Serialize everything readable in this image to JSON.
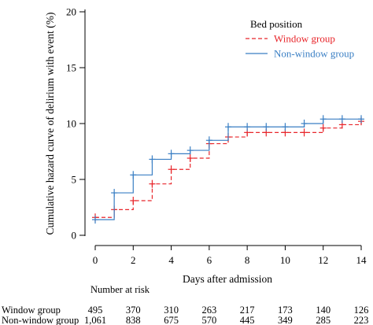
{
  "chart_data": {
    "type": "line",
    "step": true,
    "ylabel": "Cumulative hazard curve of delirium with event (%)",
    "xlabel": "Days after admission",
    "xlim": [
      0,
      14
    ],
    "ylim": [
      0,
      20
    ],
    "x_ticks": [
      "0",
      "2",
      "4",
      "6",
      "8",
      "10",
      "12",
      "14"
    ],
    "y_ticks": [
      "0",
      "5",
      "10",
      "15",
      "20"
    ],
    "grid": false,
    "legend": {
      "title": "Bed position",
      "placement": "top-right"
    },
    "series": [
      {
        "name": "Window group",
        "color": "#e8262b",
        "dash": "dashed",
        "points": [
          [
            0,
            1.6
          ],
          [
            1,
            2.3
          ],
          [
            2,
            3.1
          ],
          [
            3,
            4.6
          ],
          [
            4,
            5.9
          ],
          [
            5,
            6.9
          ],
          [
            6,
            8.2
          ],
          [
            7,
            8.8
          ],
          [
            8,
            9.2
          ],
          [
            12,
            9.6
          ],
          [
            13,
            9.9
          ],
          [
            14,
            10.2
          ]
        ],
        "censor_x": [
          0,
          1,
          2,
          3,
          4,
          5,
          6,
          7,
          8,
          9,
          10,
          11,
          12,
          13,
          14
        ]
      },
      {
        "name": "Non-window group",
        "color": "#3a7fc4",
        "dash": "solid",
        "points": [
          [
            0,
            1.4
          ],
          [
            1,
            3.8
          ],
          [
            2,
            5.4
          ],
          [
            3,
            6.8
          ],
          [
            4,
            7.3
          ],
          [
            5,
            7.6
          ],
          [
            6,
            8.5
          ],
          [
            7,
            9.7
          ],
          [
            11,
            10.0
          ],
          [
            12,
            10.4
          ]
        ],
        "censor_x": [
          0,
          1,
          2,
          3,
          4,
          5,
          6,
          7,
          8,
          9,
          10,
          11,
          12,
          13,
          14
        ]
      }
    ],
    "risk_table": {
      "title": "Number at risk",
      "rows": [
        {
          "label": "Window group",
          "values": [
            "495",
            "370",
            "310",
            "263",
            "217",
            "173",
            "140",
            "126"
          ]
        },
        {
          "label": "Non-window group",
          "values": [
            "1,061",
            "838",
            "675",
            "570",
            "445",
            "349",
            "285",
            "223"
          ]
        }
      ]
    }
  }
}
